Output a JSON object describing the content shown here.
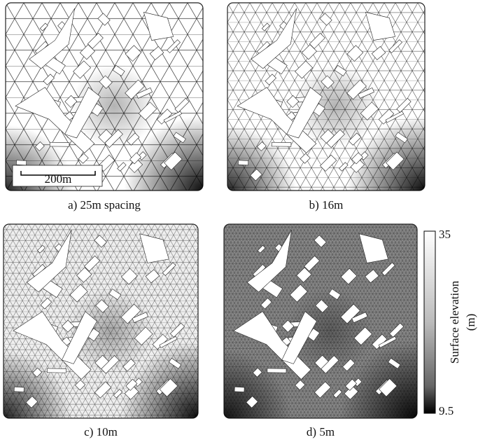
{
  "panels": [
    {
      "caption": "a) 25m spacing",
      "scale_bar": "200m"
    },
    {
      "caption": "b) 16m"
    },
    {
      "caption": "c) 10m"
    },
    {
      "caption": "d) 5m"
    }
  ],
  "colorbar": {
    "top": 35,
    "bottom": 9.5,
    "label": [
      "Surface elevation",
      "(m)"
    ]
  }
}
